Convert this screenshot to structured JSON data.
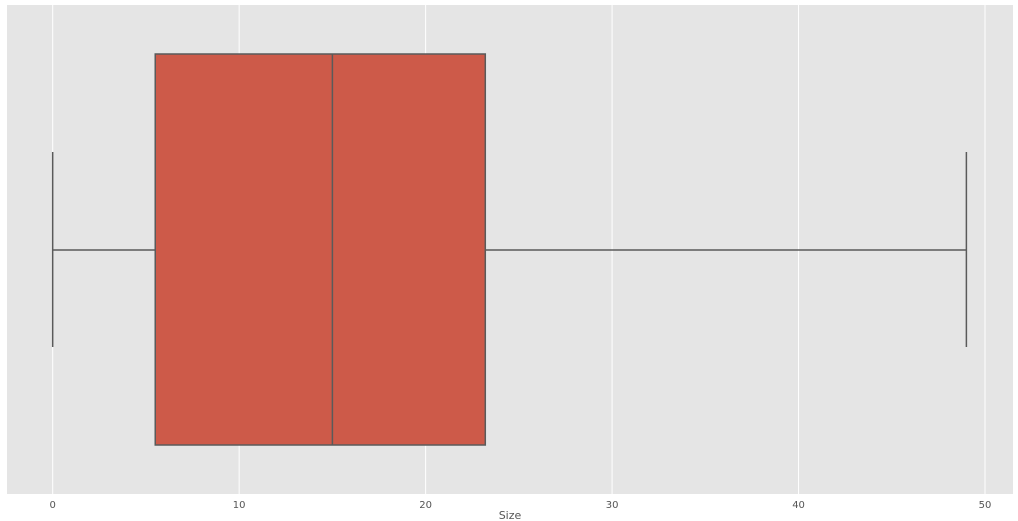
{
  "chart_data": {
    "type": "box",
    "orientation": "horizontal",
    "title": "",
    "xlabel": "Size",
    "ylabel": "",
    "xlim": [
      -2.45,
      51.5
    ],
    "xticks": [
      0,
      10,
      20,
      30,
      40,
      50
    ],
    "xtick_labels": [
      "0",
      "10",
      "20",
      "30",
      "40",
      "50"
    ],
    "grid": true,
    "box": {
      "whisker_low": 0,
      "q1": 5.5,
      "median": 15,
      "q3": 23.2,
      "whisker_high": 49
    },
    "colors": {
      "box_fill": "#cd5a49",
      "line": "#5a5a5a",
      "background": "#e5e5e5",
      "grid": "#ffffff"
    }
  }
}
